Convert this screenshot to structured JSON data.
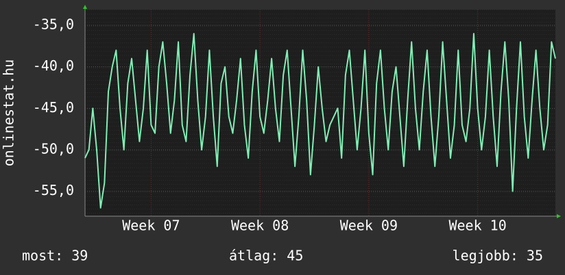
{
  "chart_data": {
    "type": "line",
    "y_label": "onlinestat.hu",
    "color": "#7ef0b4",
    "values": [
      -51,
      -50,
      -45,
      -50,
      -57,
      -54,
      -43,
      -40,
      -38,
      -45,
      -50,
      -42,
      -39,
      -44,
      -49,
      -45,
      -38,
      -47,
      -48,
      -40,
      -37,
      -42,
      -48,
      -44,
      -37,
      -47,
      -49,
      -41,
      -36,
      -44,
      -50,
      -46,
      -38,
      -46,
      -52,
      -42,
      -40,
      -46,
      -48,
      -44,
      -39,
      -47,
      -51,
      -43,
      -38,
      -46,
      -48,
      -44,
      -39,
      -45,
      -49,
      -41,
      -38,
      -45,
      -52,
      -46,
      -38,
      -44,
      -53,
      -47,
      -40,
      -45,
      -49,
      -47,
      -46,
      -45,
      -51,
      -41,
      -38,
      -44,
      -50,
      -45,
      -38,
      -48,
      -53,
      -42,
      -38,
      -45,
      -50,
      -43,
      -40,
      -46,
      -52,
      -44,
      -37,
      -45,
      -50,
      -43,
      -38,
      -46,
      -52,
      -46,
      -37,
      -44,
      -51,
      -47,
      -38,
      -47,
      -49,
      -45,
      -36,
      -45,
      -50,
      -46,
      -38,
      -46,
      -52,
      -43,
      -37,
      -44,
      -55,
      -45,
      -37,
      -46,
      -51,
      -44,
      -38,
      -45,
      -50,
      -47,
      -37,
      -39
    ],
    "xlim": [
      0,
      121
    ],
    "xticks": [
      {
        "value": 17,
        "label": "Week 07"
      },
      {
        "value": 45,
        "label": "Week 08"
      },
      {
        "value": 73,
        "label": "Week 09"
      },
      {
        "value": 101,
        "label": "Week 10"
      }
    ],
    "ylim": [
      -58,
      -33.1
    ],
    "yticks": [
      {
        "value": -35,
        "label": "-35,0"
      },
      {
        "value": -40,
        "label": "-40,0"
      },
      {
        "value": -45,
        "label": "-45,0"
      },
      {
        "value": -50,
        "label": "-50,0"
      },
      {
        "value": -55,
        "label": "-55,0"
      }
    ],
    "grid": true,
    "footer": [
      "most: 39",
      "átlag: 45",
      "legjobb: 35"
    ]
  }
}
